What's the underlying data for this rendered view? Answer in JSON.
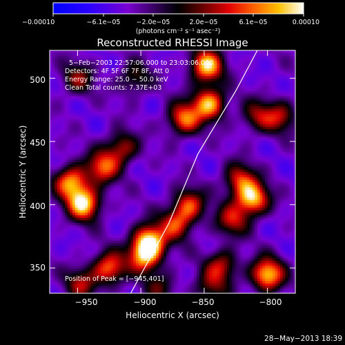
{
  "chart_data": {
    "type": "heatmap",
    "title": "Reconstructed RHESSI Image",
    "xlabel": "Heliocentric X (arcsec)",
    "ylabel": "Heliocentric Y (arcsec)",
    "xlim": [
      -972,
      -778
    ],
    "ylim": [
      330,
      522
    ],
    "x_ticks": [
      -950,
      -900,
      -850,
      -800
    ],
    "x_tick_labels": [
      "−950",
      "−900",
      "−850",
      "−800"
    ],
    "y_ticks": [
      350,
      400,
      450,
      500
    ],
    "y_tick_labels": [
      "350",
      "400",
      "450",
      "500"
    ],
    "colorbar": {
      "label": "(photons cm⁻² s⁻¹ asec⁻²)",
      "range": [
        -0.0001,
        0.0001
      ],
      "ticks": [
        -0.0001,
        -6.1e-05,
        -2e-05,
        2e-05,
        6.1e-05,
        0.0001
      ],
      "tick_labels": [
        "−0.00010",
        "−6.1e−05",
        "−2.0e−05",
        "2.0e−05",
        "6.1e−05",
        "0.00010"
      ]
    },
    "annotations": [
      "5−Feb−2003 22:57:06.000 to 23:03:06.000",
      "Detectors: 4F 5F 6F 7F 8F, Att 0",
      "Energy Range: 25.0 − 50.0 keV",
      "Clean    Total counts: 7.37E+03"
    ],
    "peak_label": "Position of Peak = [−945,401]",
    "peak_position": [
      -945,
      401
    ],
    "bright_regions": [
      {
        "x": -848,
        "y": 510,
        "strength": 0.95
      },
      {
        "x": -846,
        "y": 480,
        "strength": 0.9
      },
      {
        "x": -866,
        "y": 468,
        "strength": 0.75
      },
      {
        "x": -945,
        "y": 401,
        "strength": 1.0
      },
      {
        "x": -955,
        "y": 418,
        "strength": 0.85
      },
      {
        "x": -930,
        "y": 430,
        "strength": 0.7
      },
      {
        "x": -915,
        "y": 445,
        "strength": 0.55
      },
      {
        "x": -893,
        "y": 372,
        "strength": 0.9
      },
      {
        "x": -897,
        "y": 360,
        "strength": 0.85
      },
      {
        "x": -862,
        "y": 400,
        "strength": 0.65
      },
      {
        "x": -872,
        "y": 385,
        "strength": 0.6
      },
      {
        "x": -812,
        "y": 405,
        "strength": 0.95
      },
      {
        "x": -822,
        "y": 420,
        "strength": 0.6
      },
      {
        "x": -828,
        "y": 388,
        "strength": 0.55
      },
      {
        "x": -800,
        "y": 345,
        "strength": 0.95
      },
      {
        "x": -836,
        "y": 352,
        "strength": 0.55
      },
      {
        "x": -925,
        "y": 350,
        "strength": 0.75
      },
      {
        "x": -947,
        "y": 338,
        "strength": 0.5
      },
      {
        "x": -950,
        "y": 500,
        "strength": 0.45
      },
      {
        "x": -905,
        "y": 500,
        "strength": 0.4
      },
      {
        "x": -790,
        "y": 470,
        "strength": 0.5
      },
      {
        "x": -808,
        "y": 470,
        "strength": 0.45
      },
      {
        "x": -845,
        "y": 335,
        "strength": 0.4
      },
      {
        "x": -885,
        "y": 335,
        "strength": 0.35
      }
    ],
    "limb_line": [
      [
        -908,
        330
      ],
      [
        -878,
        385
      ],
      [
        -855,
        440
      ],
      [
        -825,
        490
      ],
      [
        -808,
        522
      ]
    ]
  },
  "footer": {
    "timestamp": "28−May−2013 18:39"
  },
  "colors": {
    "background": "#000000",
    "text": "#ffffff"
  }
}
